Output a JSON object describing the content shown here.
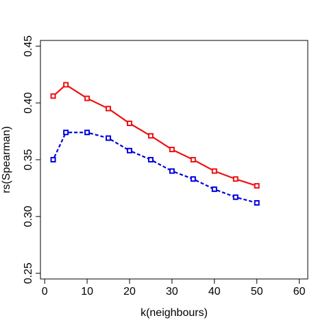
{
  "chart_data": {
    "type": "line",
    "xlabel": "k(neighbours)",
    "ylabel": "rs(Spearman)",
    "xlim": [
      -1,
      62
    ],
    "ylim": [
      0.245,
      0.455
    ],
    "x_ticks": [
      0,
      10,
      20,
      30,
      40,
      50,
      60
    ],
    "x_tick_labels": [
      "0",
      "10",
      "20",
      "30",
      "40",
      "50",
      "60"
    ],
    "y_ticks": [
      0.25,
      0.3,
      0.35,
      0.4,
      0.45
    ],
    "y_tick_labels": [
      "0.25",
      "0.30",
      "0.35",
      "0.40",
      "0.45"
    ],
    "grid": false,
    "legend": "none",
    "x": [
      2,
      5,
      10,
      15,
      20,
      25,
      30,
      35,
      40,
      45,
      50
    ],
    "series": [
      {
        "color": "#ee1111",
        "line_style": "solid",
        "marker": "open-square",
        "values": [
          0.406,
          0.416,
          0.404,
          0.395,
          0.382,
          0.371,
          0.359,
          0.35,
          0.34,
          0.333,
          0.327
        ]
      },
      {
        "color": "#0000dd",
        "line_style": "dashed",
        "marker": "open-square",
        "values": [
          0.35,
          0.374,
          0.374,
          0.369,
          0.358,
          0.35,
          0.34,
          0.333,
          0.324,
          0.317,
          0.312
        ]
      }
    ]
  }
}
